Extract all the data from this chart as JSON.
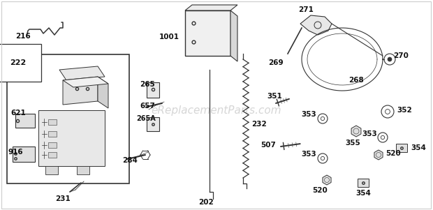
{
  "background_color": "#ffffff",
  "watermark": "eReplacementParts.com",
  "line_color": "#333333",
  "label_color": "#111111",
  "label_fontsize": 7.5,
  "watermark_color": "#bbbbbb",
  "watermark_fontsize": 11,
  "fig_width": 6.2,
  "fig_height": 3.01,
  "dpi": 100,
  "border_color": "#cccccc"
}
